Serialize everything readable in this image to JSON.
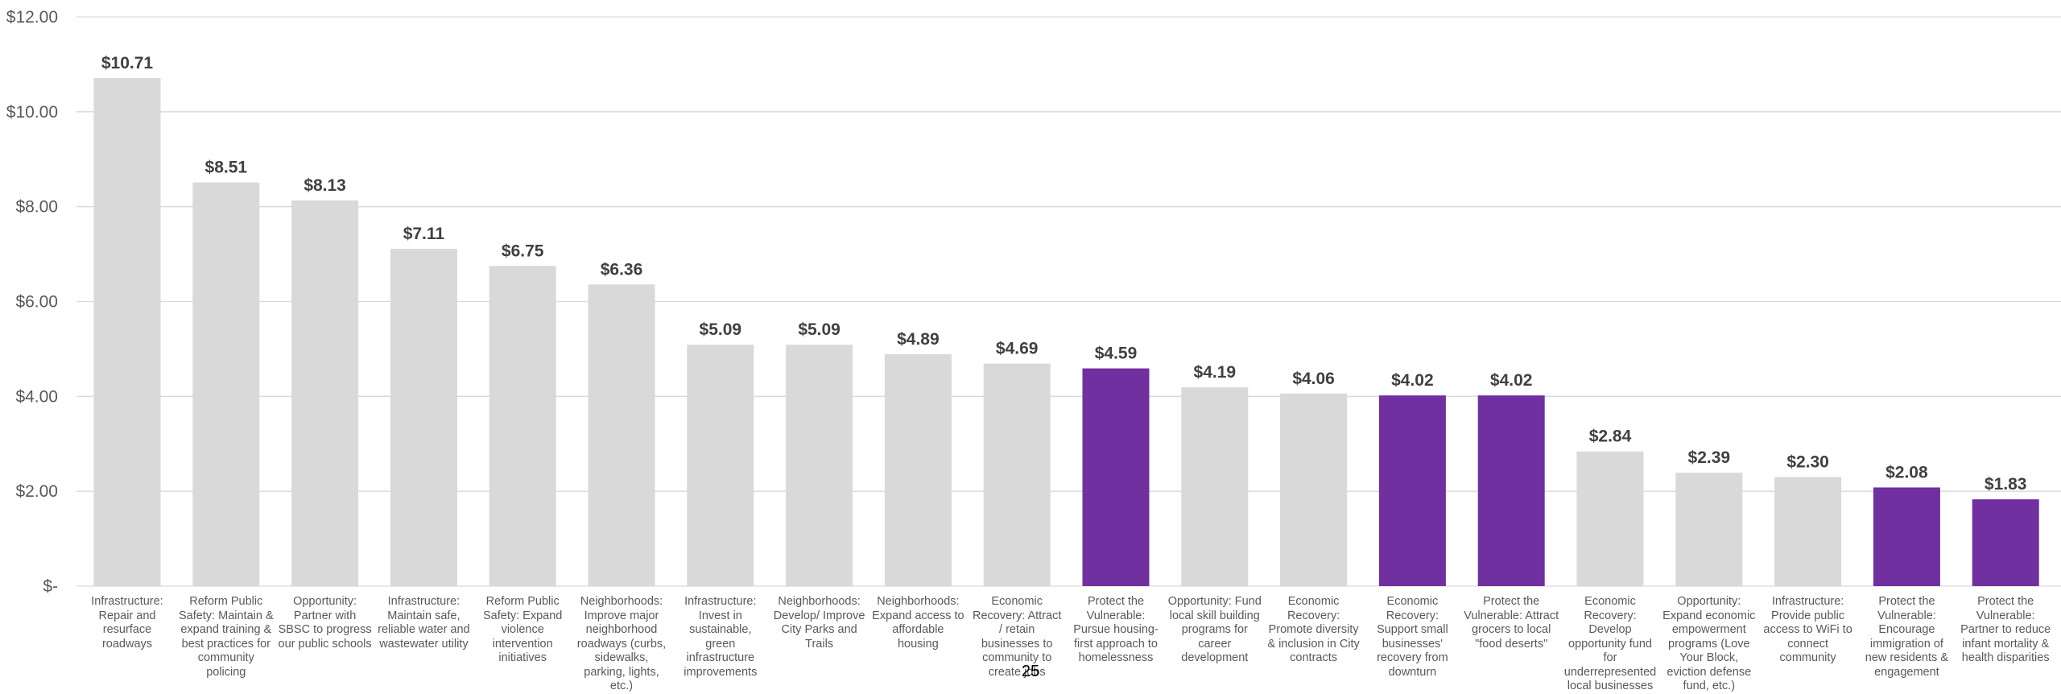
{
  "chart_data": {
    "type": "bar",
    "title": "",
    "xlabel": "",
    "ylabel": "",
    "ylim": [
      0,
      12
    ],
    "y_ticks": [
      {
        "value": 0,
        "label": "$-"
      },
      {
        "value": 2,
        "label": "$2.00"
      },
      {
        "value": 4,
        "label": "$4.00"
      },
      {
        "value": 6,
        "label": "$6.00"
      },
      {
        "value": 8,
        "label": "$8.00"
      },
      {
        "value": 10,
        "label": "$10.00"
      },
      {
        "value": 12,
        "label": "$12.00"
      }
    ],
    "grid": true,
    "colors": {
      "default": "#d9d9d9",
      "highlight": "#7030a0",
      "grid": "#d9d9d9"
    },
    "categories": [
      "Infrastructure: Repair and resurface roadways",
      "Reform Public Safety: Maintain & expand training & best practices for community policing",
      "Opportunity: Partner with SBSC to progress our public schools",
      "Infrastructure: Maintain safe, reliable water and wastewater utility",
      "Reform Public Safety: Expand violence intervention initiatives",
      "Neighborhoods: Improve major neighborhood roadways (curbs, sidewalks, parking, lights, etc.)",
      "Infrastructure: Invest in sustainable, green infrastructure improvements",
      "Neighborhoods: Develop/ Improve City Parks and Trails",
      "Neighborhoods: Expand access to affordable housing",
      "Economic Recovery: Attract / retain businesses to community to create jobs",
      "Protect the Vulnerable: Pursue housing-first approach to homelessness",
      "Opportunity: Fund local skill building programs for career development",
      "Economic Recovery: Promote diversity & inclusion in City contracts",
      "Economic Recovery: Support small businesses' recovery from downturn",
      "Protect the Vulnerable: Attract grocers to local \"food deserts\"",
      "Economic Recovery: Develop opportunity fund for underrepresented local businesses",
      "Opportunity: Expand economic empowerment programs (Love Your Block, eviction defense fund, etc.)",
      "Infrastructure: Provide public access to WiFi to connect community",
      "Protect the Vulnerable: Encourage immigration of new residents & engagement",
      "Protect the Vulnerable: Partner to reduce infant mortality & health disparities"
    ],
    "values": [
      10.71,
      8.51,
      8.13,
      7.11,
      6.75,
      6.36,
      5.09,
      5.09,
      4.89,
      4.69,
      4.59,
      4.19,
      4.06,
      4.02,
      4.02,
      2.84,
      2.39,
      2.3,
      2.08,
      1.83
    ],
    "value_labels": [
      "$10.71",
      "$8.51",
      "$8.13",
      "$7.11",
      "$6.75",
      "$6.36",
      "$5.09",
      "$5.09",
      "$4.89",
      "$4.69",
      "$4.59",
      "$4.19",
      "$4.06",
      "$4.02",
      "$4.02",
      "$2.84",
      "$2.39",
      "$2.30",
      "$2.08",
      "$1.83"
    ],
    "highlighted": [
      false,
      false,
      false,
      false,
      false,
      false,
      false,
      false,
      false,
      false,
      true,
      false,
      false,
      true,
      true,
      false,
      false,
      false,
      true,
      true
    ]
  },
  "page_number": "25"
}
